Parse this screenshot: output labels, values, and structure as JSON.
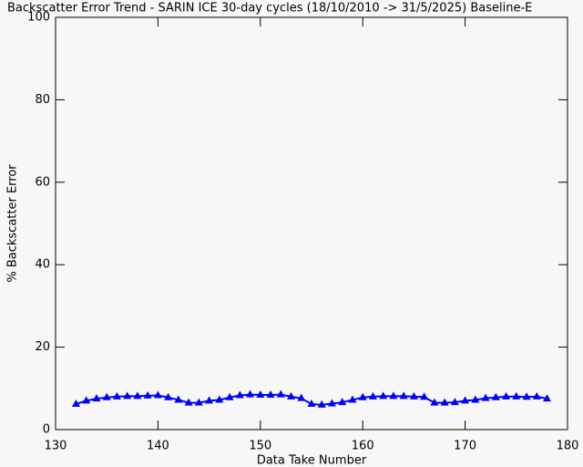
{
  "chart_data": {
    "type": "line",
    "title": "Backscatter Error Trend - SARIN ICE 30-day cycles (18/10/2010 -> 31/5/2025) Baseline-E",
    "x_label": "Data Take Number",
    "y_label": "% Backscatter Error",
    "x": [
      132,
      133,
      134,
      135,
      136,
      137,
      138,
      139,
      140,
      141,
      142,
      143,
      144,
      145,
      146,
      147,
      148,
      149,
      150,
      151,
      152,
      153,
      154,
      155,
      156,
      157,
      158,
      159,
      160,
      161,
      162,
      163,
      164,
      165,
      166,
      167,
      168,
      169,
      170,
      171,
      172,
      173,
      174,
      175,
      176,
      177,
      178
    ],
    "series": [
      {
        "color": "#0000ff",
        "values": [
          6.2,
          7,
          7.5,
          7.8,
          8,
          8.1,
          8.1,
          8.2,
          8.3,
          7.8,
          7.2,
          6.5,
          6.5,
          7,
          7.2,
          7.8,
          8.3,
          8.5,
          8.4,
          8.4,
          8.5,
          8,
          7.6,
          6.2,
          6,
          6.3,
          6.6,
          7.2,
          7.8,
          8,
          8.1,
          8.1,
          8.1,
          8,
          7.9,
          6.5,
          6.5,
          6.6,
          7,
          7.2,
          7.6,
          7.8,
          8,
          8,
          7.9,
          8,
          7.5
        ]
      }
    ],
    "xlim": [
      130,
      180
    ],
    "ylim": [
      0,
      100
    ],
    "xticks": [
      130,
      140,
      150,
      160,
      170,
      180
    ],
    "yticks": [
      0,
      20,
      40,
      60,
      80,
      100
    ]
  }
}
